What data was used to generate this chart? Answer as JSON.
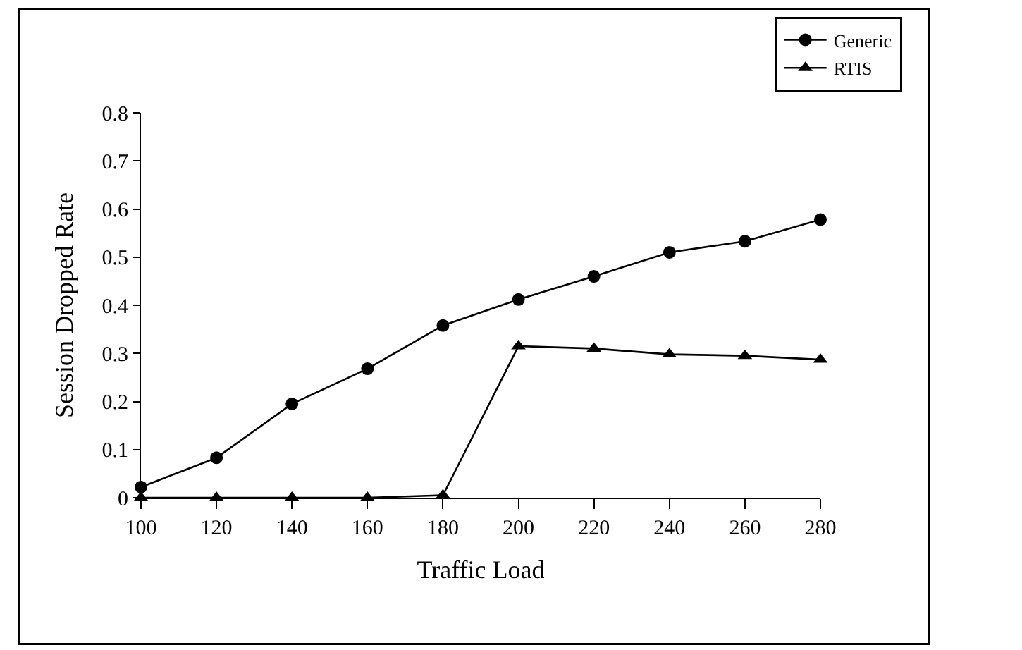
{
  "chart_data": {
    "type": "line",
    "xlabel": "Traffic Load",
    "ylabel": "Session Dropped Rate",
    "x": [
      100,
      120,
      140,
      160,
      180,
      200,
      220,
      240,
      260,
      280
    ],
    "xlim": [
      100,
      280
    ],
    "xticks": [
      100,
      120,
      140,
      160,
      180,
      200,
      220,
      240,
      260,
      280
    ],
    "ylim": [
      0,
      0.8
    ],
    "yticks": [
      0,
      0.1,
      0.2,
      0.3,
      0.4,
      0.5,
      0.6,
      0.7,
      0.8
    ],
    "series": [
      {
        "name": "Generic",
        "color": "#000000",
        "marker": "circle",
        "values": [
          0.022,
          0.083,
          0.195,
          0.268,
          0.358,
          0.412,
          0.46,
          0.51,
          0.533,
          0.578
        ]
      },
      {
        "name": "RTIS",
        "color": "#000000",
        "marker": "triangle",
        "values": [
          0,
          0,
          0,
          0,
          0.005,
          0.315,
          0.31,
          0.298,
          0.295,
          0.287
        ]
      }
    ],
    "grid": false,
    "legend": "top right",
    "line_style": "solid"
  }
}
